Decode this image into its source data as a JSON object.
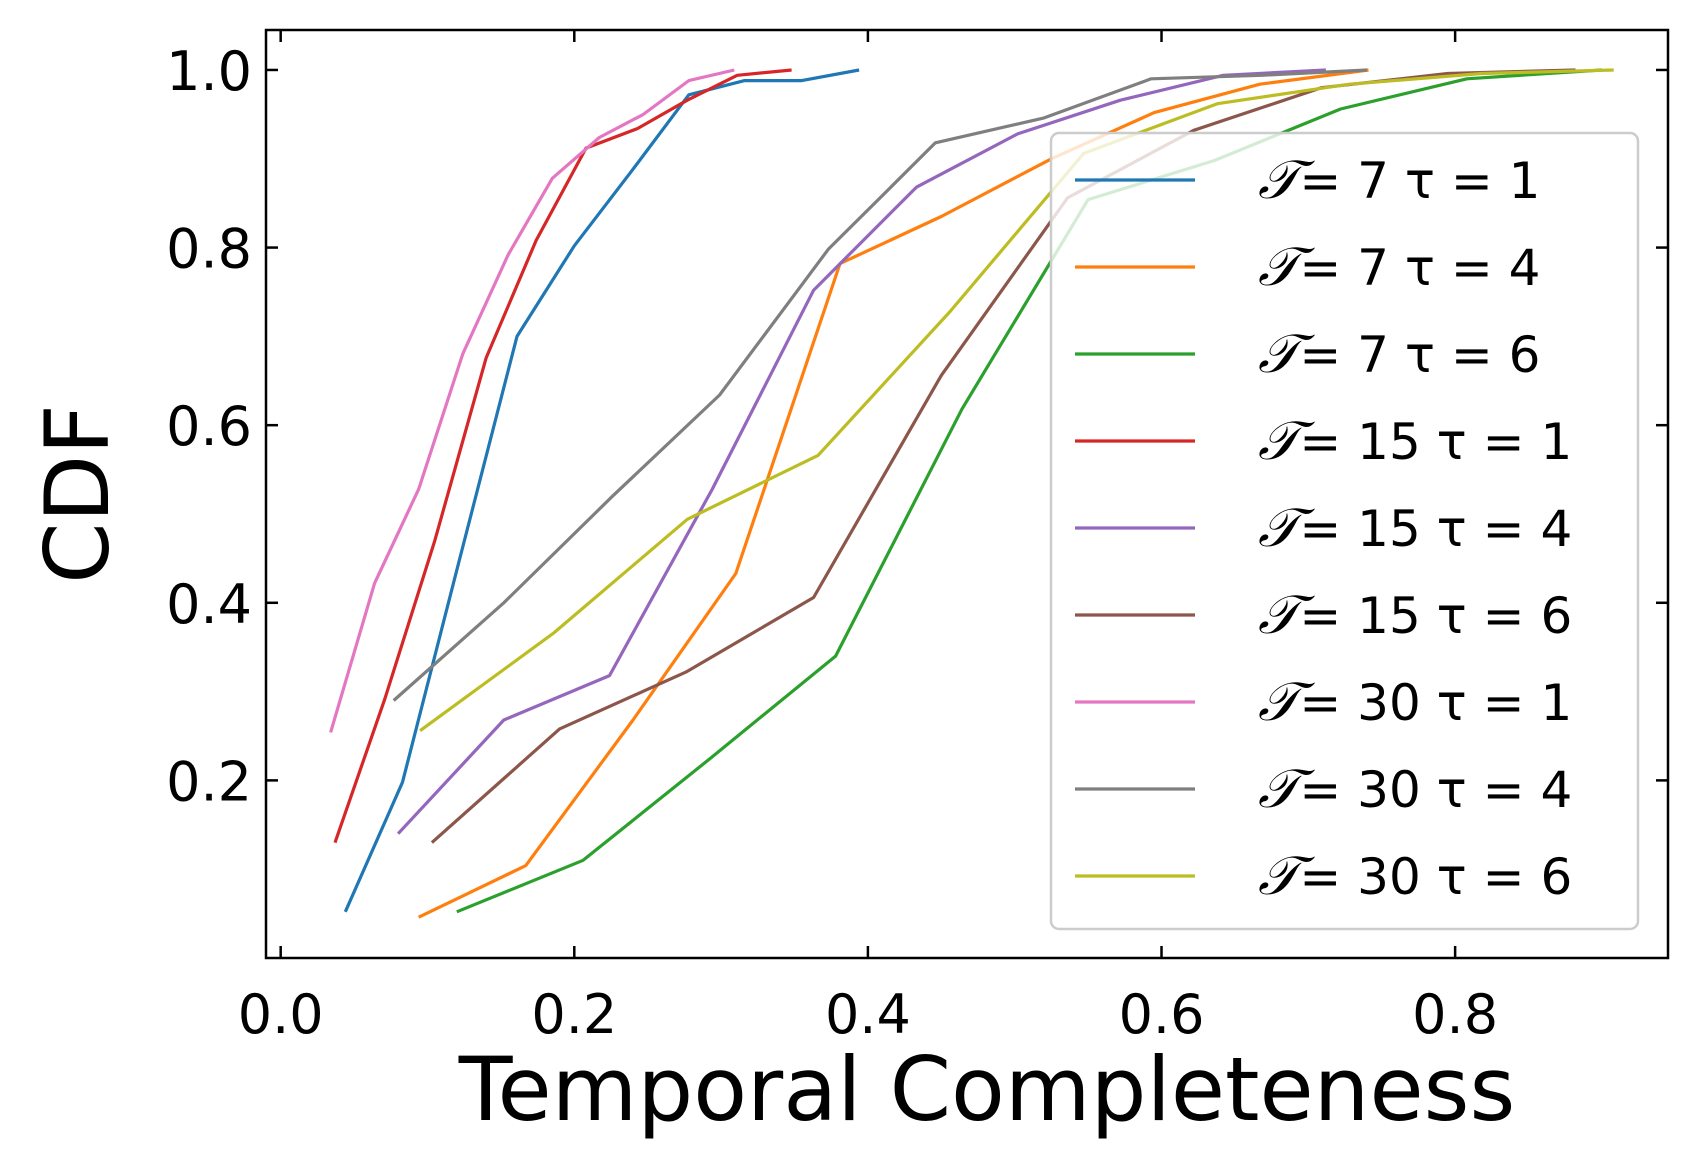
{
  "chart_data": {
    "type": "line",
    "title": "",
    "xlabel": "Temporal Completeness",
    "ylabel": "CDF",
    "xlim": [
      -0.01,
      0.945
    ],
    "ylim": [
      0.0,
      1.045
    ],
    "xticks": [
      0.0,
      0.2,
      0.4,
      0.6,
      0.8
    ],
    "xtick_labels": [
      "0.0",
      "0.2",
      "0.4",
      "0.6",
      "0.8"
    ],
    "yticks": [
      0.2,
      0.4,
      0.6,
      0.8,
      1.0
    ],
    "ytick_labels": [
      "0.2",
      "0.4",
      "0.6",
      "0.8",
      "1.0"
    ],
    "grid": false,
    "legend_position": "center-right",
    "legend_symbol": "𝒯",
    "series": [
      {
        "name": "𝒯= 7 τ =  1",
        "color": "#1f77b4",
        "x": [
          0.044,
          0.083,
          0.122,
          0.161,
          0.2,
          0.239,
          0.278,
          0.316,
          0.355,
          0.394
        ],
        "y": [
          0.052,
          0.198,
          0.45,
          0.7,
          0.802,
          0.886,
          0.972,
          0.988,
          0.988,
          1.0
        ]
      },
      {
        "name": "𝒯= 7 τ =  4",
        "color": "#ff7f0e",
        "x": [
          0.094,
          0.167,
          0.24,
          0.31,
          0.381,
          0.45,
          0.525,
          0.595,
          0.667,
          0.741
        ],
        "y": [
          0.046,
          0.104,
          0.268,
          0.433,
          0.782,
          0.835,
          0.9,
          0.952,
          0.984,
          1.0
        ]
      },
      {
        "name": "𝒯= 7 τ =  6",
        "color": "#2ca02c",
        "x": [
          0.12,
          0.206,
          0.292,
          0.378,
          0.464,
          0.55,
          0.636,
          0.722,
          0.808,
          0.9
        ],
        "y": [
          0.052,
          0.11,
          0.224,
          0.34,
          0.618,
          0.854,
          0.898,
          0.956,
          0.99,
          1.0
        ]
      },
      {
        "name": "𝒯= 15 τ =  1",
        "color": "#d62728",
        "x": [
          0.037,
          0.071,
          0.105,
          0.14,
          0.174,
          0.208,
          0.243,
          0.277,
          0.311,
          0.348
        ],
        "y": [
          0.13,
          0.292,
          0.47,
          0.676,
          0.808,
          0.912,
          0.934,
          0.966,
          0.994,
          1.0
        ]
      },
      {
        "name": "𝒯= 15 τ =  4",
        "color": "#9467bd",
        "x": [
          0.08,
          0.152,
          0.224,
          0.294,
          0.363,
          0.433,
          0.502,
          0.572,
          0.642,
          0.712
        ],
        "y": [
          0.14,
          0.268,
          0.318,
          0.528,
          0.752,
          0.868,
          0.928,
          0.966,
          0.994,
          1.0
        ]
      },
      {
        "name": "𝒯= 15 τ =  6",
        "color": "#8c564b",
        "x": [
          0.103,
          0.19,
          0.276,
          0.363,
          0.45,
          0.536,
          0.622,
          0.709,
          0.795,
          0.882
        ],
        "y": [
          0.13,
          0.258,
          0.322,
          0.406,
          0.656,
          0.856,
          0.932,
          0.98,
          0.996,
          1.0
        ]
      },
      {
        "name": "𝒯= 30 τ =  1",
        "color": "#e377c2",
        "x": [
          0.034,
          0.064,
          0.094,
          0.124,
          0.155,
          0.185,
          0.217,
          0.247,
          0.278,
          0.309
        ],
        "y": [
          0.254,
          0.422,
          0.528,
          0.68,
          0.792,
          0.878,
          0.924,
          0.95,
          0.988,
          1.0
        ]
      },
      {
        "name": "𝒯= 30 τ =  4",
        "color": "#7f7f7f",
        "x": [
          0.077,
          0.152,
          0.226,
          0.299,
          0.373,
          0.446,
          0.52,
          0.593,
          0.668,
          0.74
        ],
        "y": [
          0.29,
          0.4,
          0.52,
          0.634,
          0.798,
          0.918,
          0.946,
          0.99,
          0.994,
          1.0
        ]
      },
      {
        "name": "𝒯= 30 τ =  6",
        "color": "#bcbd22",
        "x": [
          0.095,
          0.186,
          0.277,
          0.366,
          0.456,
          0.547,
          0.638,
          0.728,
          0.818,
          0.908
        ],
        "y": [
          0.256,
          0.366,
          0.494,
          0.566,
          0.728,
          0.906,
          0.962,
          0.984,
          0.996,
          1.0
        ]
      }
    ]
  }
}
